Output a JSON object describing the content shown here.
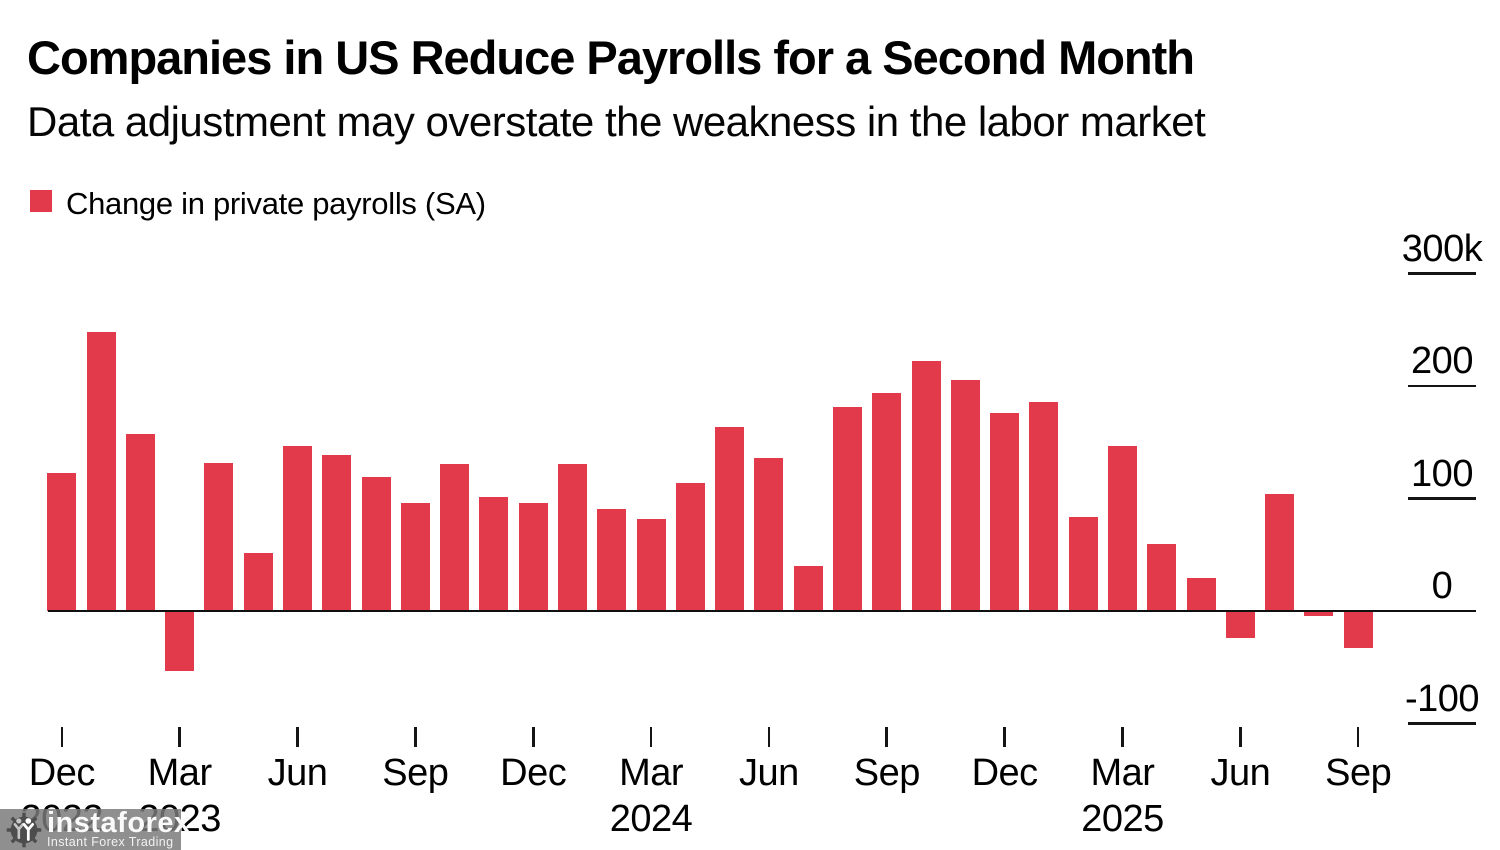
{
  "header": {
    "title": "Companies in US Reduce Payrolls for a Second Month",
    "subtitle": "Data adjustment may overstate the weakness in the labor market"
  },
  "legend": {
    "label": "Change in private payrolls (SA)",
    "swatch_color": "#e2394b"
  },
  "chart_data": {
    "type": "bar",
    "title": "Companies in US Reduce Payrolls for a Second Month",
    "subtitle": "Data adjustment may overstate the weakness in the labor market",
    "series_name": "Change in private payrolls (SA)",
    "unit": "thousands of jobs",
    "bar_color": "#e2394b",
    "grid": false,
    "legend_position": "top-left",
    "ylim": [
      -150,
      320
    ],
    "x": [
      "Dec 2022",
      "Jan 2023",
      "Feb 2023",
      "Mar 2023",
      "Apr 2023",
      "May 2023",
      "Jun 2023",
      "Jul 2023",
      "Aug 2023",
      "Sep 2023",
      "Oct 2023",
      "Nov 2023",
      "Dec 2023",
      "Jan 2024",
      "Feb 2024",
      "Mar 2024",
      "Apr 2024",
      "May 2024",
      "Jun 2024",
      "Jul 2024",
      "Aug 2024",
      "Sep 2024",
      "Oct 2024",
      "Nov 2024",
      "Dec 2024",
      "Jan 2025",
      "Feb 2025",
      "Mar 2025",
      "Apr 2025",
      "May 2025",
      "Jun 2025",
      "Jul 2025",
      "Aug 2025",
      "Sep 2025"
    ],
    "values": [
      123,
      248,
      157,
      -52,
      132,
      52,
      147,
      139,
      119,
      96,
      131,
      101,
      96,
      131,
      91,
      82,
      114,
      164,
      136,
      40,
      181,
      194,
      222,
      205,
      176,
      186,
      84,
      147,
      60,
      29,
      -23,
      104,
      -3,
      -32
    ],
    "y_ticks": [
      {
        "label": "300k",
        "value": 300
      },
      {
        "label": "200",
        "value": 200
      },
      {
        "label": "100",
        "value": 100
      },
      {
        "label": "0",
        "value": 0
      },
      {
        "label": "-100",
        "value": -100
      }
    ],
    "x_ticks": [
      {
        "label": "Dec",
        "year": "2022",
        "index": 0
      },
      {
        "label": "Mar",
        "year": "2023",
        "index": 3
      },
      {
        "label": "Jun",
        "year": "",
        "index": 6
      },
      {
        "label": "Sep",
        "year": "",
        "index": 9
      },
      {
        "label": "Dec",
        "year": "",
        "index": 12
      },
      {
        "label": "Mar",
        "year": "2024",
        "index": 15
      },
      {
        "label": "Jun",
        "year": "",
        "index": 18
      },
      {
        "label": "Sep",
        "year": "",
        "index": 21
      },
      {
        "label": "Dec",
        "year": "",
        "index": 24
      },
      {
        "label": "Mar",
        "year": "2025",
        "index": 27
      },
      {
        "label": "Jun",
        "year": "",
        "index": 30
      },
      {
        "label": "Sep",
        "year": "",
        "index": 33
      }
    ]
  },
  "watermark": {
    "brand": "instaforex",
    "tagline": "Instant Forex Trading"
  }
}
